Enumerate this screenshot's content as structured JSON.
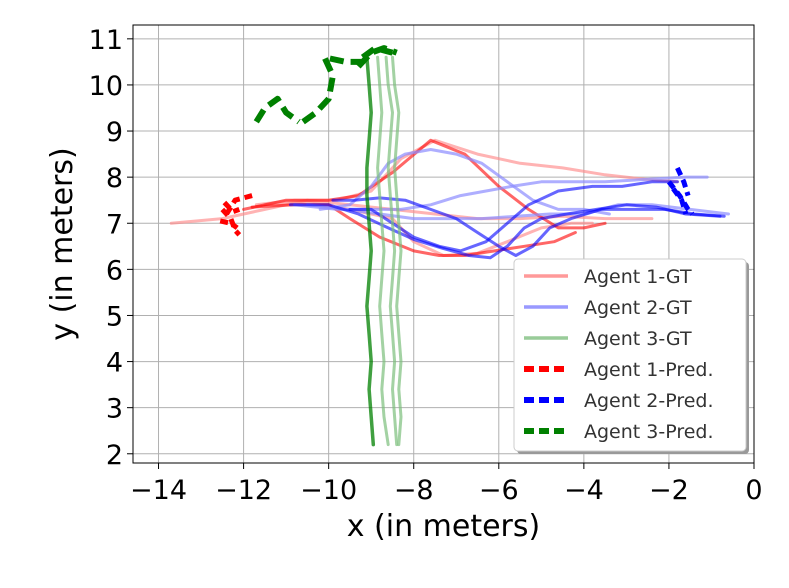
{
  "chart_data": {
    "type": "line",
    "title": "",
    "xlabel": "x (in meters)",
    "ylabel": "y (in meters)",
    "xlim": [
      -14.6,
      0.0
    ],
    "ylim": [
      1.8,
      11.3
    ],
    "xticks": [
      -14,
      -12,
      -10,
      -8,
      -6,
      -4,
      -2,
      0
    ],
    "yticks": [
      2,
      3,
      4,
      5,
      6,
      7,
      8,
      9,
      10,
      11
    ],
    "xtick_labels": [
      "−14",
      "−12",
      "−10",
      "−8",
      "−6",
      "−4",
      "−2",
      "0"
    ],
    "ytick_labels": [
      "2",
      "3",
      "4",
      "5",
      "6",
      "7",
      "8",
      "9",
      "10",
      "11"
    ],
    "grid": true,
    "legend_position": "lower-right",
    "legend": [
      {
        "label": "Agent 1-GT",
        "color": "#ff9999",
        "style": "solid"
      },
      {
        "label": "Agent 2-GT",
        "color": "#9999ff",
        "style": "solid"
      },
      {
        "label": "Agent 3-GT",
        "color": "#99cc99",
        "style": "solid"
      },
      {
        "label": "Agent 1-Pred.",
        "color": "#ff0000",
        "style": "dashed"
      },
      {
        "label": "Agent 2-Pred.",
        "color": "#0000ff",
        "style": "dashed"
      },
      {
        "label": "Agent 3-Pred.",
        "color": "#008000",
        "style": "dashed"
      }
    ],
    "series": [
      {
        "color": "#ff8a8a",
        "alpha": 0.65,
        "width": 3,
        "dash": "",
        "points": [
          [
            -13.7,
            7.0
          ],
          [
            -12.5,
            7.1
          ],
          [
            -11.5,
            7.3
          ],
          [
            -10.5,
            7.5
          ],
          [
            -9.5,
            7.4
          ],
          [
            -8.5,
            7.3
          ],
          [
            -7.5,
            7.2
          ],
          [
            -6.5,
            7.1
          ],
          [
            -5.5,
            7.1
          ],
          [
            -4.5,
            7.15
          ],
          [
            -3.5,
            7.1
          ],
          [
            -2.4,
            7.1
          ]
        ]
      },
      {
        "color": "#ff8a8a",
        "alpha": 0.65,
        "width": 3,
        "dash": "",
        "points": [
          [
            -11.7,
            7.4
          ],
          [
            -10.8,
            7.5
          ],
          [
            -9.8,
            7.5
          ],
          [
            -9.0,
            7.7
          ],
          [
            -8.3,
            8.4
          ],
          [
            -7.5,
            8.8
          ],
          [
            -6.5,
            8.5
          ],
          [
            -5.5,
            8.3
          ],
          [
            -4.5,
            8.2
          ],
          [
            -3.5,
            8.05
          ],
          [
            -2.5,
            7.95
          ],
          [
            -1.8,
            7.9
          ]
        ]
      },
      {
        "color": "#ff8a8a",
        "alpha": 0.65,
        "width": 3,
        "dash": "",
        "points": [
          [
            -11.5,
            7.4
          ],
          [
            -10.5,
            7.45
          ],
          [
            -9.5,
            7.3
          ],
          [
            -8.5,
            7.1
          ],
          [
            -8.0,
            6.6
          ],
          [
            -7.3,
            6.3
          ],
          [
            -6.5,
            6.35
          ],
          [
            -5.8,
            6.6
          ],
          [
            -5.0,
            6.9
          ],
          [
            -4.3,
            7.0
          ],
          [
            -3.8,
            7.0
          ]
        ]
      },
      {
        "color": "#ff0000",
        "alpha": 0.6,
        "width": 3,
        "dash": "",
        "points": [
          [
            -12.0,
            7.3
          ],
          [
            -11.0,
            7.5
          ],
          [
            -10.0,
            7.5
          ],
          [
            -9.3,
            7.6
          ],
          [
            -8.5,
            8.1
          ],
          [
            -7.6,
            8.8
          ],
          [
            -6.8,
            8.5
          ],
          [
            -6.0,
            7.8
          ],
          [
            -5.3,
            7.3
          ],
          [
            -4.6,
            6.9
          ],
          [
            -4.0,
            6.9
          ],
          [
            -3.5,
            7.0
          ]
        ]
      },
      {
        "color": "#ff0000",
        "alpha": 0.6,
        "width": 3,
        "dash": "",
        "points": [
          [
            -11.8,
            7.35
          ],
          [
            -10.8,
            7.4
          ],
          [
            -10.0,
            7.4
          ],
          [
            -9.5,
            7.1
          ],
          [
            -8.8,
            6.7
          ],
          [
            -8.0,
            6.4
          ],
          [
            -7.4,
            6.3
          ],
          [
            -6.8,
            6.3
          ],
          [
            -6.1,
            6.4
          ],
          [
            -5.4,
            6.5
          ],
          [
            -4.7,
            6.6
          ],
          [
            -4.2,
            6.8
          ]
        ]
      },
      {
        "color": "#8c8cff",
        "alpha": 0.7,
        "width": 3,
        "dash": "",
        "points": [
          [
            -10.8,
            7.4
          ],
          [
            -9.8,
            7.3
          ],
          [
            -9.0,
            7.3
          ],
          [
            -8.3,
            7.3
          ],
          [
            -7.6,
            7.4
          ],
          [
            -6.9,
            7.6
          ],
          [
            -6.3,
            7.7
          ],
          [
            -5.7,
            7.8
          ],
          [
            -5.0,
            7.9
          ],
          [
            -4.3,
            7.9
          ],
          [
            -3.5,
            7.9
          ],
          [
            -2.6,
            7.95
          ],
          [
            -1.6,
            8.0
          ],
          [
            -1.1,
            8.0
          ]
        ]
      },
      {
        "color": "#8c8cff",
        "alpha": 0.7,
        "width": 3,
        "dash": "",
        "points": [
          [
            -10.5,
            7.4
          ],
          [
            -9.6,
            7.3
          ],
          [
            -8.8,
            7.2
          ],
          [
            -8.0,
            7.1
          ],
          [
            -7.2,
            7.1
          ],
          [
            -6.4,
            7.1
          ],
          [
            -5.6,
            7.15
          ],
          [
            -4.8,
            7.2
          ],
          [
            -4.0,
            7.2
          ],
          [
            -3.2,
            7.4
          ],
          [
            -2.4,
            7.4
          ],
          [
            -1.5,
            7.3
          ],
          [
            -0.6,
            7.2
          ]
        ]
      },
      {
        "color": "#8c8cff",
        "alpha": 0.7,
        "width": 3,
        "dash": "",
        "points": [
          [
            -10.2,
            7.3
          ],
          [
            -9.5,
            7.4
          ],
          [
            -9.0,
            7.8
          ],
          [
            -8.6,
            8.3
          ],
          [
            -8.2,
            8.5
          ],
          [
            -7.6,
            8.6
          ],
          [
            -7.0,
            8.5
          ],
          [
            -6.4,
            8.3
          ],
          [
            -5.8,
            7.9
          ],
          [
            -5.2,
            7.5
          ],
          [
            -4.6,
            7.3
          ],
          [
            -4.0,
            7.3
          ],
          [
            -3.4,
            7.2
          ]
        ]
      },
      {
        "color": "#0000ff",
        "alpha": 0.6,
        "width": 3,
        "dash": "",
        "points": [
          [
            -10.9,
            7.4
          ],
          [
            -10.0,
            7.4
          ],
          [
            -9.3,
            7.2
          ],
          [
            -8.6,
            6.9
          ],
          [
            -8.0,
            6.65
          ],
          [
            -7.3,
            6.45
          ],
          [
            -6.7,
            6.3
          ],
          [
            -6.2,
            6.25
          ],
          [
            -5.8,
            6.5
          ],
          [
            -5.4,
            6.9
          ],
          [
            -5.0,
            7.1
          ],
          [
            -4.4,
            7.2
          ],
          [
            -3.7,
            7.3
          ],
          [
            -3.0,
            7.4
          ],
          [
            -2.3,
            7.35
          ],
          [
            -1.6,
            7.2
          ],
          [
            -0.8,
            7.15
          ]
        ]
      },
      {
        "color": "#0000ff",
        "alpha": 0.6,
        "width": 3,
        "dash": "",
        "points": [
          [
            -9.5,
            7.3
          ],
          [
            -9.0,
            7.3
          ],
          [
            -8.5,
            7.0
          ],
          [
            -8.0,
            6.7
          ],
          [
            -7.4,
            6.5
          ],
          [
            -6.9,
            6.4
          ],
          [
            -6.3,
            6.6
          ],
          [
            -5.8,
            7.0
          ],
          [
            -5.3,
            7.4
          ],
          [
            -4.6,
            7.7
          ],
          [
            -3.8,
            7.8
          ],
          [
            -3.1,
            7.8
          ],
          [
            -2.4,
            7.9
          ],
          [
            -1.8,
            7.9
          ]
        ]
      },
      {
        "color": "#0000ff",
        "alpha": 0.6,
        "width": 3,
        "dash": "",
        "points": [
          [
            -9.9,
            7.5
          ],
          [
            -9.4,
            7.5
          ],
          [
            -8.8,
            7.55
          ],
          [
            -8.2,
            7.5
          ],
          [
            -7.6,
            7.3
          ],
          [
            -7.0,
            7.1
          ],
          [
            -6.5,
            6.8
          ],
          [
            -6.0,
            6.5
          ],
          [
            -5.6,
            6.3
          ],
          [
            -5.2,
            6.5
          ],
          [
            -4.8,
            6.9
          ],
          [
            -4.3,
            7.1
          ],
          [
            -3.6,
            7.3
          ],
          [
            -2.9,
            7.3
          ],
          [
            -2.1,
            7.3
          ],
          [
            -1.4,
            7.2
          ],
          [
            -0.7,
            7.15
          ]
        ]
      },
      {
        "color": "#7cbf7c",
        "alpha": 0.7,
        "width": 3,
        "dash": "",
        "points": [
          [
            -8.65,
            10.6
          ],
          [
            -8.6,
            10.0
          ],
          [
            -8.5,
            9.4
          ],
          [
            -8.55,
            8.8
          ],
          [
            -8.6,
            8.2
          ],
          [
            -8.55,
            7.6
          ],
          [
            -8.5,
            7.0
          ],
          [
            -8.45,
            6.4
          ],
          [
            -8.5,
            5.8
          ],
          [
            -8.55,
            5.2
          ],
          [
            -8.5,
            4.6
          ],
          [
            -8.45,
            4.0
          ],
          [
            -8.5,
            3.4
          ],
          [
            -8.45,
            2.8
          ],
          [
            -8.4,
            2.2
          ]
        ]
      },
      {
        "color": "#7cbf7c",
        "alpha": 0.7,
        "width": 3,
        "dash": "",
        "points": [
          [
            -8.5,
            10.6
          ],
          [
            -8.45,
            10.0
          ],
          [
            -8.35,
            9.4
          ],
          [
            -8.4,
            8.8
          ],
          [
            -8.45,
            8.2
          ],
          [
            -8.4,
            7.6
          ],
          [
            -8.35,
            7.0
          ],
          [
            -8.3,
            6.4
          ],
          [
            -8.35,
            5.8
          ],
          [
            -8.4,
            5.2
          ],
          [
            -8.35,
            4.6
          ],
          [
            -8.3,
            4.0
          ],
          [
            -8.35,
            3.4
          ],
          [
            -8.3,
            2.8
          ],
          [
            -8.35,
            2.2
          ]
        ]
      },
      {
        "color": "#7cbf7c",
        "alpha": 0.7,
        "width": 3,
        "dash": "",
        "points": [
          [
            -8.85,
            10.6
          ],
          [
            -8.8,
            10.0
          ],
          [
            -8.75,
            9.4
          ],
          [
            -8.8,
            8.8
          ],
          [
            -8.85,
            8.2
          ],
          [
            -8.8,
            7.6
          ],
          [
            -8.75,
            7.0
          ],
          [
            -8.7,
            6.4
          ],
          [
            -8.75,
            5.8
          ],
          [
            -8.8,
            5.2
          ],
          [
            -8.75,
            4.6
          ],
          [
            -8.7,
            4.0
          ],
          [
            -8.75,
            3.4
          ],
          [
            -8.7,
            2.8
          ],
          [
            -8.6,
            2.2
          ]
        ]
      },
      {
        "color": "#008000",
        "alpha": 0.75,
        "width": 3.5,
        "dash": "",
        "points": [
          [
            -9.1,
            10.6
          ],
          [
            -9.05,
            10.0
          ],
          [
            -9.0,
            9.4
          ],
          [
            -9.05,
            8.8
          ],
          [
            -9.1,
            8.2
          ],
          [
            -9.1,
            7.6
          ],
          [
            -9.05,
            7.0
          ],
          [
            -9.0,
            6.4
          ],
          [
            -9.05,
            5.8
          ],
          [
            -9.1,
            5.2
          ],
          [
            -9.05,
            4.6
          ],
          [
            -9.0,
            4.0
          ],
          [
            -9.05,
            3.4
          ],
          [
            -9.0,
            2.8
          ],
          [
            -8.95,
            2.2
          ]
        ]
      },
      {
        "color": "#ff0000",
        "alpha": 1.0,
        "width": 5,
        "dash": "8,5",
        "points": [
          [
            -12.4,
            7.2
          ],
          [
            -12.2,
            7.5
          ],
          [
            -11.8,
            7.6
          ]
        ]
      },
      {
        "color": "#ff0000",
        "alpha": 1.0,
        "width": 5,
        "dash": "8,5",
        "points": [
          [
            -12.5,
            7.3
          ],
          [
            -12.3,
            7.1
          ],
          [
            -12.2,
            6.85
          ],
          [
            -12.1,
            6.75
          ]
        ]
      },
      {
        "color": "#ff0000",
        "alpha": 1.0,
        "width": 5,
        "dash": "8,5",
        "points": [
          [
            -12.45,
            7.45
          ],
          [
            -12.25,
            7.25
          ],
          [
            -12.1,
            7.3
          ]
        ]
      },
      {
        "color": "#ff0000",
        "alpha": 1.0,
        "width": 5,
        "dash": "8,5",
        "points": [
          [
            -12.55,
            7.05
          ],
          [
            -12.3,
            7.0
          ],
          [
            -12.15,
            6.9
          ]
        ]
      },
      {
        "color": "#0000ff",
        "alpha": 1.0,
        "width": 5,
        "dash": "8,5",
        "points": [
          [
            -1.8,
            8.2
          ],
          [
            -1.65,
            7.9
          ],
          [
            -1.55,
            7.6
          ]
        ]
      },
      {
        "color": "#0000ff",
        "alpha": 1.0,
        "width": 5,
        "dash": "8,5",
        "points": [
          [
            -2.0,
            7.9
          ],
          [
            -1.75,
            7.6
          ],
          [
            -1.55,
            7.3
          ],
          [
            -1.45,
            7.2
          ]
        ]
      },
      {
        "color": "#0000ff",
        "alpha": 1.0,
        "width": 5,
        "dash": "8,5",
        "points": [
          [
            -1.9,
            7.75
          ],
          [
            -1.7,
            7.5
          ],
          [
            -1.6,
            7.2
          ]
        ]
      },
      {
        "color": "#008000",
        "alpha": 1.0,
        "width": 6,
        "dash": "14,7",
        "points": [
          [
            -11.7,
            9.2
          ],
          [
            -11.5,
            9.5
          ],
          [
            -11.2,
            9.7
          ],
          [
            -11.0,
            9.4
          ],
          [
            -10.7,
            9.2
          ]
        ]
      },
      {
        "color": "#008000",
        "alpha": 1.0,
        "width": 6,
        "dash": "14,7",
        "points": [
          [
            -10.6,
            9.2
          ],
          [
            -10.3,
            9.4
          ],
          [
            -10.0,
            9.7
          ],
          [
            -9.9,
            10.2
          ],
          [
            -10.1,
            10.6
          ],
          [
            -9.6,
            10.5
          ],
          [
            -9.2,
            10.5
          ]
        ]
      },
      {
        "color": "#008000",
        "alpha": 1.0,
        "width": 6,
        "dash": "14,7",
        "points": [
          [
            -9.2,
            10.6
          ],
          [
            -8.9,
            10.8
          ],
          [
            -8.5,
            10.7
          ]
        ]
      },
      {
        "color": "#008000",
        "alpha": 1.0,
        "width": 6,
        "dash": "14,7",
        "points": [
          [
            -9.3,
            10.4
          ],
          [
            -9.0,
            10.7
          ],
          [
            -8.7,
            10.8
          ],
          [
            -8.4,
            10.7
          ]
        ]
      }
    ]
  }
}
